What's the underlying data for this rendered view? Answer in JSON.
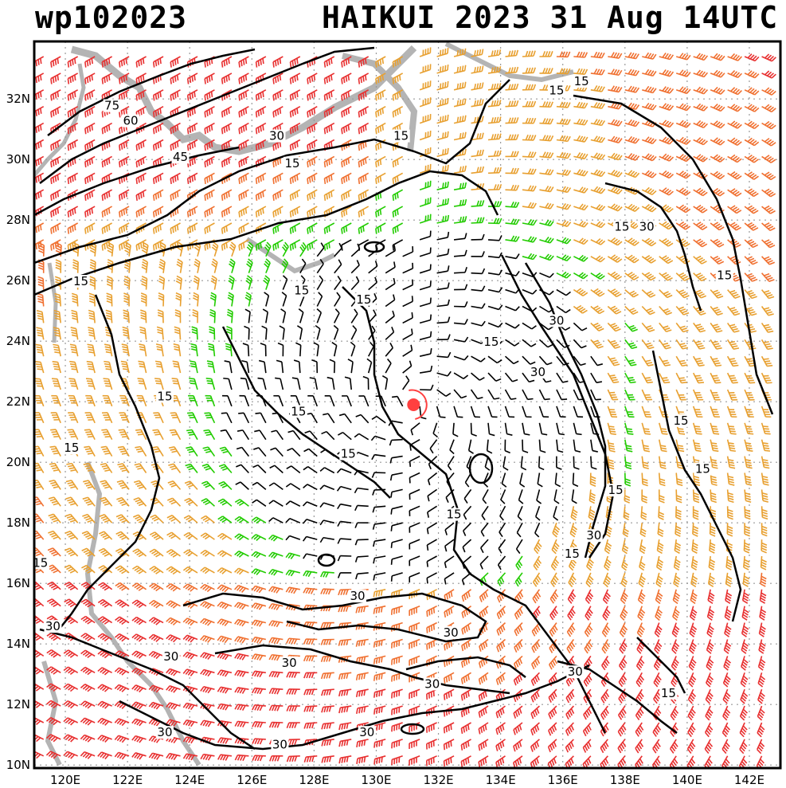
{
  "header": {
    "storm_id": "wp102023",
    "title": "HAIKUI 2023 31 Aug 14UTC"
  },
  "chart_data": {
    "type": "wind_analysis_map",
    "storm_center": {
      "lon": 131.2,
      "lat": 21.9
    },
    "lon_ticks": [
      120,
      122,
      124,
      126,
      128,
      130,
      132,
      134,
      136,
      138,
      140,
      142
    ],
    "lat_ticks": [
      10,
      12,
      14,
      16,
      18,
      20,
      22,
      24,
      26,
      28,
      30,
      32
    ],
    "lon_tick_labels": [
      "120E",
      "122E",
      "124E",
      "126E",
      "128E",
      "130E",
      "132E",
      "134E",
      "136E",
      "138E",
      "140E",
      "142E"
    ],
    "lat_tick_labels": [
      "10N",
      "12N",
      "14N",
      "16N",
      "18N",
      "20N",
      "22N",
      "24N",
      "26N",
      "28N",
      "30N",
      "32N"
    ],
    "grid": true,
    "wind_speed_colors": {
      "under_15": "#000000",
      "15_to_30": "#22cc00",
      "30_to_45": "#e8a030",
      "45_to_60": "#f07030",
      "over_60": "#e83030"
    },
    "coast_color": "#b4b4b4",
    "contour_labels": [
      {
        "text": "75",
        "lon": 121.5,
        "lat": 31.7
      },
      {
        "text": "60",
        "lon": 122.1,
        "lat": 31.2
      },
      {
        "text": "45",
        "lon": 123.7,
        "lat": 30.0
      },
      {
        "text": "30",
        "lon": 126.8,
        "lat": 30.7
      },
      {
        "text": "15",
        "lon": 127.3,
        "lat": 29.8
      },
      {
        "text": "15",
        "lon": 130.8,
        "lat": 30.7
      },
      {
        "text": "15",
        "lon": 135.8,
        "lat": 32.2
      },
      {
        "text": "15",
        "lon": 136.6,
        "lat": 32.5
      },
      {
        "text": "15",
        "lon": 120.5,
        "lat": 25.9
      },
      {
        "text": "15",
        "lon": 127.6,
        "lat": 25.6
      },
      {
        "text": "15",
        "lon": 129.6,
        "lat": 25.3
      },
      {
        "text": "15",
        "lon": 137.9,
        "lat": 27.7
      },
      {
        "text": "30",
        "lon": 138.7,
        "lat": 27.7
      },
      {
        "text": "15",
        "lon": 141.2,
        "lat": 26.1
      },
      {
        "text": "30",
        "lon": 135.8,
        "lat": 24.6
      },
      {
        "text": "15",
        "lon": 133.7,
        "lat": 23.9
      },
      {
        "text": "30",
        "lon": 135.2,
        "lat": 22.9
      },
      {
        "text": "15",
        "lon": 123.2,
        "lat": 22.1
      },
      {
        "text": "15",
        "lon": 127.5,
        "lat": 21.6
      },
      {
        "text": "15",
        "lon": 120.2,
        "lat": 20.4
      },
      {
        "text": "15",
        "lon": 129.1,
        "lat": 20.2
      },
      {
        "text": "15",
        "lon": 139.8,
        "lat": 21.3
      },
      {
        "text": "15",
        "lon": 140.5,
        "lat": 19.7
      },
      {
        "text": "15",
        "lon": 137.7,
        "lat": 19.0
      },
      {
        "text": "15",
        "lon": 132.5,
        "lat": 18.2
      },
      {
        "text": "30",
        "lon": 137.0,
        "lat": 17.5
      },
      {
        "text": "15",
        "lon": 136.3,
        "lat": 16.9
      },
      {
        "text": "15",
        "lon": 119.2,
        "lat": 16.6
      },
      {
        "text": "30",
        "lon": 129.4,
        "lat": 15.5
      },
      {
        "text": "30",
        "lon": 132.4,
        "lat": 14.3
      },
      {
        "text": "30",
        "lon": 119.6,
        "lat": 14.5
      },
      {
        "text": "30",
        "lon": 123.4,
        "lat": 13.5
      },
      {
        "text": "30",
        "lon": 127.2,
        "lat": 13.3
      },
      {
        "text": "30",
        "lon": 131.8,
        "lat": 12.6
      },
      {
        "text": "30",
        "lon": 136.4,
        "lat": 13.0
      },
      {
        "text": "15",
        "lon": 139.4,
        "lat": 12.3
      },
      {
        "text": "30",
        "lon": 129.7,
        "lat": 11.0
      },
      {
        "text": "30",
        "lon": 123.2,
        "lat": 11.0
      },
      {
        "text": "30",
        "lon": 126.9,
        "lat": 10.6
      }
    ]
  }
}
